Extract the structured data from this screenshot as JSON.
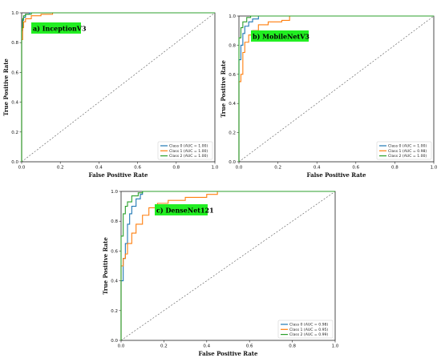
{
  "colors": {
    "class0": "#1f77b4",
    "class1": "#ff7f0e",
    "class2": "#2ca02c",
    "badge": "#22ee22",
    "diagonal": "#555555"
  },
  "chart_data": [
    {
      "type": "line",
      "title": "a) InceptionV3",
      "xlabel": "False Positive Rate",
      "ylabel": "True Positive Rate",
      "xlim": [
        0,
        1
      ],
      "ylim": [
        0,
        1
      ],
      "ticks": [
        "0.0",
        "0.2",
        "0.4",
        "0.6",
        "0.8",
        "1.0"
      ],
      "legend_position": "lower-right",
      "grid": false,
      "series": [
        {
          "name": "Class 0 (AUC = 1.00)",
          "x": [
            0,
            0,
            0.005,
            0.01,
            0.02,
            0.04,
            0.08,
            1
          ],
          "y": [
            0,
            0.88,
            0.95,
            0.97,
            0.99,
            1.0,
            1.0,
            1.0
          ]
        },
        {
          "name": "Class 1 (AUC = 1.00)",
          "x": [
            0,
            0,
            0.005,
            0.01,
            0.02,
            0.05,
            0.1,
            0.16,
            1
          ],
          "y": [
            0,
            0.82,
            0.9,
            0.94,
            0.96,
            0.98,
            0.99,
            1.0,
            1.0
          ]
        },
        {
          "name": "Class 2 (AUC = 1.00)",
          "x": [
            0,
            0,
            0.005,
            0.01,
            0.02,
            0.05,
            1
          ],
          "y": [
            0,
            0.9,
            0.96,
            0.98,
            0.99,
            1.0,
            1.0
          ]
        }
      ]
    },
    {
      "type": "line",
      "title": "b) MobileNetV3",
      "xlabel": "False Positive Rate",
      "ylabel": "True Positive Rate",
      "xlim": [
        0,
        1
      ],
      "ylim": [
        0,
        1
      ],
      "ticks": [
        "0.0",
        "0.2",
        "0.4",
        "0.6",
        "0.8",
        "1.0"
      ],
      "legend_position": "lower-right",
      "grid": false,
      "series": [
        {
          "name": "Class 0 (AUC = 1.00)",
          "x": [
            0,
            0,
            0.01,
            0.02,
            0.03,
            0.05,
            0.07,
            0.1,
            1
          ],
          "y": [
            0,
            0.7,
            0.8,
            0.88,
            0.93,
            0.96,
            0.98,
            1.0,
            1.0
          ]
        },
        {
          "name": "Class 1 (AUC = 0.98)",
          "x": [
            0,
            0,
            0.01,
            0.02,
            0.03,
            0.05,
            0.07,
            0.1,
            0.15,
            0.22,
            0.26,
            1
          ],
          "y": [
            0,
            0.55,
            0.6,
            0.75,
            0.82,
            0.87,
            0.9,
            0.94,
            0.96,
            0.97,
            1.0,
            1.0
          ]
        },
        {
          "name": "Class 2 (AUC = 1.00)",
          "x": [
            0,
            0,
            0.01,
            0.02,
            0.04,
            0.06,
            1
          ],
          "y": [
            0,
            0.85,
            0.92,
            0.96,
            0.99,
            1.0,
            1.0
          ]
        }
      ]
    },
    {
      "type": "line",
      "title": "c) DenseNet121",
      "xlabel": "False Positive Rate",
      "ylabel": "True Positive Rate",
      "xlim": [
        0,
        1
      ],
      "ylim": [
        0,
        1
      ],
      "ticks": [
        "0.0",
        "0.2",
        "0.4",
        "0.6",
        "0.8",
        "1.0"
      ],
      "legend_position": "lower-right",
      "grid": false,
      "series": [
        {
          "name": "Class 0 (AUC = 0.98)",
          "x": [
            0,
            0,
            0.01,
            0.02,
            0.03,
            0.04,
            0.05,
            0.07,
            0.09,
            0.1,
            1
          ],
          "y": [
            0,
            0.4,
            0.55,
            0.65,
            0.78,
            0.85,
            0.9,
            0.95,
            0.98,
            1.0,
            1.0
          ]
        },
        {
          "name": "Class 1 (AUC = 0.95)",
          "x": [
            0,
            0,
            0.01,
            0.02,
            0.03,
            0.05,
            0.07,
            0.1,
            0.13,
            0.17,
            0.22,
            0.3,
            0.4,
            0.45,
            1
          ],
          "y": [
            0,
            0.5,
            0.55,
            0.58,
            0.65,
            0.72,
            0.78,
            0.84,
            0.89,
            0.92,
            0.94,
            0.96,
            0.98,
            1.0,
            1.0
          ]
        },
        {
          "name": "Class 2 (AUC = 0.99)",
          "x": [
            0,
            0,
            0.01,
            0.02,
            0.03,
            0.05,
            0.08,
            0.1,
            1
          ],
          "y": [
            0,
            0.7,
            0.85,
            0.9,
            0.93,
            0.97,
            0.99,
            1.0,
            1.0
          ]
        }
      ]
    }
  ]
}
